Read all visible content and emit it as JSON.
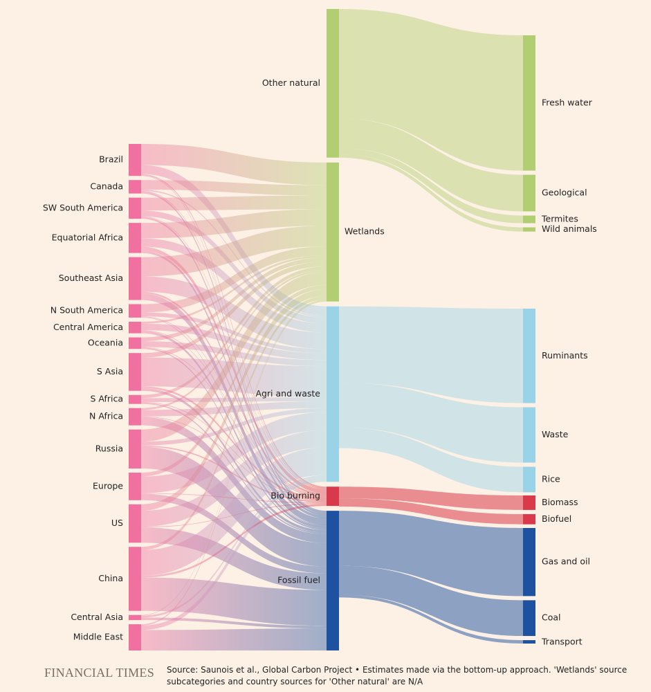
{
  "chart_data": {
    "type": "sankey",
    "units": "Tg CH4/yr",
    "colors": {
      "region": "#f0719f",
      "Other natural": "#b1cf72",
      "Wetlands": "#b1cf72",
      "Agri and waste": "#9ad2e8",
      "Bio burning": "#d83a4b",
      "Fossil fuel": "#1e52a0",
      "background": "#fdf1e6"
    },
    "regions": [
      "Brazil",
      "Canada",
      "SW South America",
      "Equatorial Africa",
      "Southeast Asia",
      "N South America",
      "Central America",
      "Oceania",
      "S Asia",
      "S Africa",
      "N Africa",
      "Russia",
      "Europe",
      "US",
      "China",
      "Central Asia",
      "Middle East"
    ],
    "categories": [
      "Other natural",
      "Wetlands",
      "Agri and waste",
      "Bio burning",
      "Fossil fuel"
    ],
    "region_category_flows": [
      {
        "region": "Brazil",
        "Wetlands": 33,
        "Agri and waste": 14,
        "Bio burning": 2,
        "Fossil fuel": 1
      },
      {
        "region": "Canada",
        "Wetlands": 15,
        "Agri and waste": 2,
        "Bio burning": 1,
        "Fossil fuel": 3
      },
      {
        "region": "SW South America",
        "Wetlands": 20,
        "Agri and waste": 9,
        "Bio burning": 1,
        "Fossil fuel": 3
      },
      {
        "region": "Equatorial Africa",
        "Wetlands": 24,
        "Agri and waste": 13,
        "Bio burning": 6,
        "Fossil fuel": 4
      },
      {
        "region": "Southeast Asia",
        "Wetlands": 30,
        "Agri and waste": 24,
        "Bio burning": 3,
        "Fossil fuel": 10
      },
      {
        "region": "N South America",
        "Wetlands": 13,
        "Agri and waste": 6,
        "Bio burning": 1,
        "Fossil fuel": 1
      },
      {
        "region": "Central America",
        "Wetlands": 3,
        "Agri and waste": 10,
        "Bio burning": 1,
        "Fossil fuel": 4
      },
      {
        "region": "Oceania",
        "Wetlands": 6,
        "Agri and waste": 9,
        "Bio burning": 1,
        "Fossil fuel": 2
      },
      {
        "region": "S Asia",
        "Wetlands": 7,
        "Agri and waste": 45,
        "Bio burning": 3,
        "Fossil fuel": 4
      },
      {
        "region": "S Africa",
        "Wetlands": 5,
        "Agri and waste": 6,
        "Bio burning": 1,
        "Fossil fuel": 2
      },
      {
        "region": "N Africa",
        "Wetlands": 3,
        "Agri and waste": 10,
        "Bio burning": 1,
        "Fossil fuel": 13
      },
      {
        "region": "Russia",
        "Wetlands": 19,
        "Agri and waste": 6,
        "Bio burning": 2,
        "Fossil fuel": 34
      },
      {
        "region": "Europe",
        "Wetlands": 6,
        "Agri and waste": 26,
        "Bio burning": 1,
        "Fossil fuel": 10
      },
      {
        "region": "US",
        "Wetlands": 10,
        "Agri and waste": 25,
        "Bio burning": 1,
        "Fossil fuel": 24
      },
      {
        "region": "China",
        "Wetlands": 5,
        "Agri and waste": 40,
        "Bio burning": 3,
        "Fossil fuel": 52
      },
      {
        "region": "Central Asia",
        "Wetlands": 1,
        "Agri and waste": 3,
        "Bio burning": 0,
        "Fossil fuel": 4
      },
      {
        "region": "Middle East",
        "Wetlands": 2,
        "Agri and waste": 7,
        "Bio burning": 0,
        "Fossil fuel": 32
      }
    ],
    "subcategory_flows": [
      {
        "from": "Other natural",
        "to": "Fresh water",
        "value": 159
      },
      {
        "from": "Other natural",
        "to": "Geological",
        "value": 43
      },
      {
        "from": "Other natural",
        "to": "Termites",
        "value": 9
      },
      {
        "from": "Other natural",
        "to": "Wild animals",
        "value": 5
      },
      {
        "from": "Agri and waste",
        "to": "Ruminants",
        "value": 111
      },
      {
        "from": "Agri and waste",
        "to": "Waste",
        "value": 65
      },
      {
        "from": "Agri and waste",
        "to": "Rice",
        "value": 30
      },
      {
        "from": "Bio burning",
        "to": "Biomass",
        "value": 17
      },
      {
        "from": "Bio burning",
        "to": "Biofuel",
        "value": 12
      },
      {
        "from": "Fossil fuel",
        "to": "Gas and oil",
        "value": 80
      },
      {
        "from": "Fossil fuel",
        "to": "Coal",
        "value": 42
      },
      {
        "from": "Fossil fuel",
        "to": "Transport",
        "value": 4
      }
    ],
    "subcategories": [
      {
        "name": "Fresh water",
        "parent": "Other natural",
        "label": "Fresh water"
      },
      {
        "name": "Geological",
        "parent": "Other natural",
        "label": "Geological"
      },
      {
        "name": "Termites",
        "parent": "Other natural",
        "label": "Termites"
      },
      {
        "name": "Wild animals",
        "parent": "Other natural",
        "label": "Wild animals"
      },
      {
        "name": "Ruminants",
        "parent": "Agri and waste",
        "label": "Ruminants"
      },
      {
        "name": "Waste",
        "parent": "Agri and waste",
        "label": "Waste"
      },
      {
        "name": "Rice",
        "parent": "Agri and waste",
        "label": "Rice"
      },
      {
        "name": "Biomass",
        "parent": "Bio burning",
        "label": "Biomass"
      },
      {
        "name": "Biofuel",
        "parent": "Bio burning",
        "label": "Biofuel"
      },
      {
        "name": "Gas and oil",
        "parent": "Fossil fuel",
        "label": "Gas and oil"
      },
      {
        "name": "Coal",
        "parent": "Fossil fuel",
        "label": "Coal"
      },
      {
        "name": "Transport",
        "parent": "Fossil fuel",
        "label": "Transport"
      }
    ]
  },
  "footer": {
    "brand": "FINANCIAL TIMES",
    "source": "Source: Saunois et al., Global Carbon Project • Estimates made via the bottom-up approach. 'Wetlands' source subcategories and country sources for 'Other natural' are N/A"
  }
}
